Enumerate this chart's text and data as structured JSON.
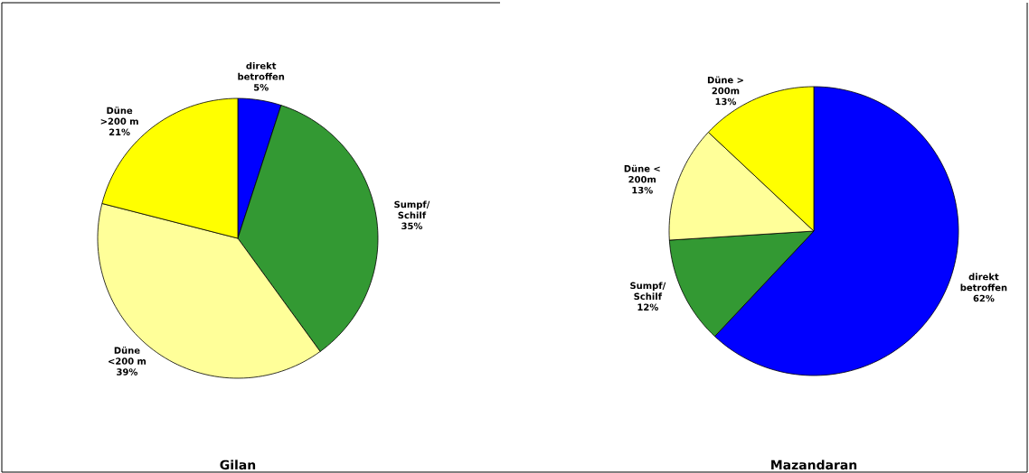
{
  "chart_data": [
    {
      "type": "pie",
      "title": "Gilan",
      "categories": [
        "direkt betroffen",
        "Sumpf/ Schilf",
        "Düne <200 m",
        "Düne >200 m"
      ],
      "values": [
        5,
        35,
        39,
        21
      ],
      "value_labels": [
        "5%",
        "35%",
        "39%",
        "21%"
      ],
      "colors": [
        "#0000ff",
        "#339933",
        "#ffff99",
        "#ffff00"
      ]
    },
    {
      "type": "pie",
      "title": "Mazandaran",
      "categories": [
        "direkt betroffen",
        "Sumpf/ Schilf",
        "Düne < 200m",
        "Düne > 200m"
      ],
      "values": [
        62,
        12,
        13,
        13
      ],
      "value_labels": [
        "62%",
        "12%",
        "13%",
        "13%"
      ],
      "colors": [
        "#0000ff",
        "#339933",
        "#ffff99",
        "#ffff00"
      ]
    }
  ]
}
